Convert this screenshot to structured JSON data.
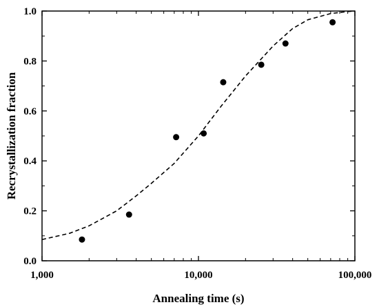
{
  "chart_data": {
    "type": "scatter",
    "title": "",
    "xlabel": "Annealing time (s)",
    "ylabel": "Recrystallization fraction",
    "xscale": "log",
    "xlim": [
      1000,
      100000
    ],
    "ylim": [
      0,
      1.0
    ],
    "x_ticks": [
      1000,
      10000,
      100000
    ],
    "x_tick_labels": [
      "1,000",
      "10,000",
      "100,000"
    ],
    "y_ticks": [
      0,
      0.2,
      0.4,
      0.6,
      0.8,
      1.0
    ],
    "y_tick_labels": [
      "0.0",
      "0.2",
      "0.4",
      "0.6",
      "0.8",
      "1.0"
    ],
    "grid": false,
    "legend": "none",
    "series": [
      {
        "kind": "points",
        "marker": "filled-circle",
        "color": "#000000",
        "x": [
          1800,
          3600,
          7200,
          10800,
          14400,
          25200,
          36000,
          72000
        ],
        "y": [
          0.085,
          0.185,
          0.495,
          0.51,
          0.715,
          0.785,
          0.87,
          0.955
        ]
      },
      {
        "kind": "fit-curve",
        "line_style": "dashed",
        "color": "#000000",
        "x": [
          1000,
          1500,
          2000,
          3000,
          4000,
          5000,
          7000,
          10000,
          14000,
          20000,
          30000,
          40000,
          50000,
          70000,
          90000,
          100000
        ],
        "y": [
          0.085,
          0.11,
          0.14,
          0.2,
          0.26,
          0.31,
          0.39,
          0.5,
          0.62,
          0.74,
          0.86,
          0.93,
          0.965,
          0.99,
          0.998,
          1.0
        ]
      }
    ]
  }
}
